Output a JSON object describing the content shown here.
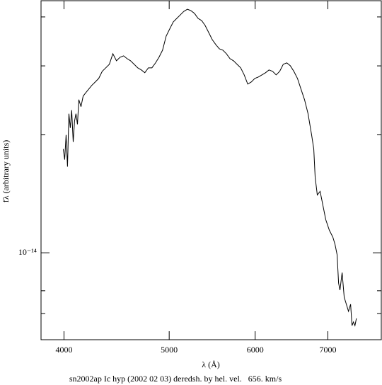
{
  "chart_data": {
    "type": "line",
    "caption": "sn2002ap Ic hyp (2002 02 03) deredsh. by hel. vel.   656. km/s",
    "xlabel": "λ (Å)",
    "ylabel": "fλ (arbitrary units)",
    "xscale": "log",
    "yscale": "log",
    "xlim": [
      3810,
      7840
    ],
    "ylim": [
      6e-15,
      4.4e-14
    ],
    "xticks": [
      4000,
      5000,
      6000,
      7000
    ],
    "yticks": [
      {
        "value": 1e-14,
        "label": "10⁻¹⁴"
      }
    ],
    "yminor": [
      7e-15,
      8e-15,
      2e-14,
      3e-14,
      4e-14
    ],
    "color": "#000000",
    "x": [
      3994,
      4006,
      4018,
      4030,
      4042,
      4054,
      4066,
      4079,
      4091,
      4103,
      4116,
      4128,
      4147,
      4166,
      4191,
      4216,
      4242,
      4274,
      4306,
      4338,
      4371,
      4404,
      4437,
      4471,
      4505,
      4539,
      4573,
      4607,
      4642,
      4677,
      4713,
      4748,
      4784,
      4820,
      4857,
      4893,
      4930,
      4968,
      5005,
      5043,
      5081,
      5119,
      5158,
      5197,
      5236,
      5276,
      5316,
      5356,
      5396,
      5437,
      5478,
      5519,
      5561,
      5603,
      5645,
      5688,
      5731,
      5774,
      5818,
      5862,
      5906,
      5951,
      5996,
      6041,
      6087,
      6133,
      6179,
      6226,
      6273,
      6320,
      6368,
      6416,
      6464,
      6513,
      6563,
      6612,
      6662,
      6712,
      6763,
      6794,
      6814,
      6845,
      6886,
      6917,
      6969,
      7022,
      7075,
      7107,
      7139,
      7161,
      7182,
      7215,
      7247,
      7280,
      7313,
      7346,
      7368,
      7390,
      7414,
      7437
    ],
    "y": [
      1.84e-14,
      1.729e-14,
      1.999e-14,
      1.659e-14,
      2.265e-14,
      2.084e-14,
      2.312e-14,
      1.918e-14,
      2.172e-14,
      2.265e-14,
      2.128e-14,
      2.46e-14,
      2.36e-14,
      2.512e-14,
      2.565e-14,
      2.618e-14,
      2.673e-14,
      2.729e-14,
      2.787e-14,
      2.905e-14,
      2.966e-14,
      3.028e-14,
      3.222e-14,
      3.091e-14,
      3.156e-14,
      3.182e-14,
      3.13e-14,
      3.091e-14,
      3.028e-14,
      2.966e-14,
      2.929e-14,
      2.881e-14,
      2.966e-14,
      2.966e-14,
      3.053e-14,
      3.156e-14,
      3.29e-14,
      3.574e-14,
      3.726e-14,
      3.884e-14,
      3.965e-14,
      4.048e-14,
      4.133e-14,
      4.184e-14,
      4.15e-14,
      4.082e-14,
      3.965e-14,
      3.916e-14,
      3.804e-14,
      3.649e-14,
      3.5e-14,
      3.401e-14,
      3.317e-14,
      3.29e-14,
      3.222e-14,
      3.13e-14,
      3.091e-14,
      3.028e-14,
      2.966e-14,
      2.845e-14,
      2.696e-14,
      2.729e-14,
      2.787e-14,
      2.81e-14,
      2.845e-14,
      2.881e-14,
      2.929e-14,
      2.905e-14,
      2.845e-14,
      2.905e-14,
      3.028e-14,
      3.053e-14,
      3.003e-14,
      2.905e-14,
      2.787e-14,
      2.618e-14,
      2.46e-14,
      2.265e-14,
      1.999e-14,
      1.84e-14,
      1.559e-14,
      1.405e-14,
      1.435e-14,
      1.348e-14,
      1.215e-14,
      1.142e-14,
      1.096e-14,
      1.051e-14,
      9.88e-15,
      8.37e-15,
      8.03e-15,
      8.9e-15,
      7.7e-15,
      7.39e-15,
      7.09e-15,
      7.39e-15,
      6.52e-15,
      6.66e-15,
      6.52e-15,
      6.8e-15
    ]
  }
}
